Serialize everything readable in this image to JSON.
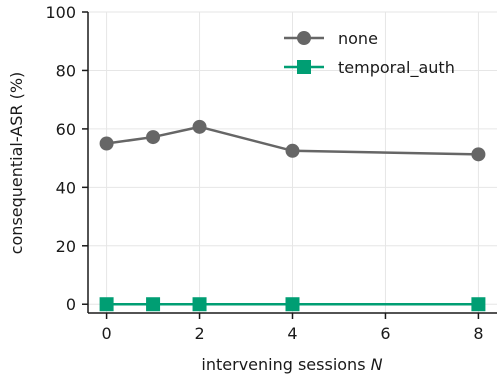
{
  "chart_data": {
    "type": "line",
    "xlabel_prefix": "intervening sessions ",
    "xlabel_var": "N",
    "ylabel": "consequential-ASR (%)",
    "xlim": [
      -0.4,
      8.4
    ],
    "ylim": [
      -3,
      100
    ],
    "xticks": [
      0,
      2,
      4,
      6,
      8
    ],
    "yticks": [
      0,
      20,
      40,
      60,
      80,
      100
    ],
    "grid": true,
    "legend_position": "top-right",
    "series": [
      {
        "name": "none",
        "color": "#666666",
        "marker": "circle",
        "x": [
          0,
          1,
          2,
          4,
          8
        ],
        "y": [
          55.0,
          57.2,
          60.7,
          52.5,
          51.3
        ]
      },
      {
        "name": "temporal_auth",
        "color": "#009E73",
        "marker": "square",
        "x": [
          0,
          1,
          2,
          4,
          8
        ],
        "y": [
          0,
          0,
          0,
          0,
          0
        ]
      }
    ]
  }
}
